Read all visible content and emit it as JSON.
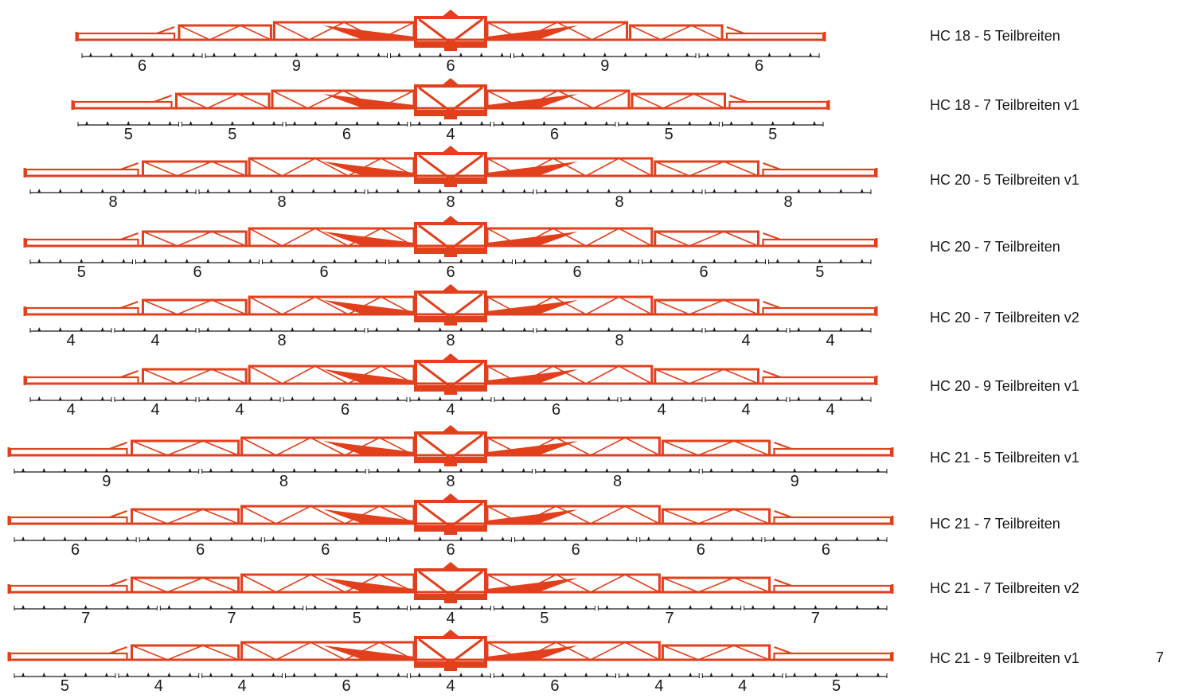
{
  "colors": {
    "boom": "#e2401c",
    "boom_dark": "#7a1d08",
    "line": "#1a1a1a"
  },
  "page_number": "7",
  "rows": [
    {
      "label": "HC 18 - 5 Teilbreiten",
      "sections": [
        6,
        9,
        6,
        9,
        6
      ]
    },
    {
      "label": "HC 18 - 7 Teilbreiten v1",
      "sections": [
        5,
        5,
        6,
        4,
        6,
        5,
        5
      ]
    },
    {
      "label": "HC 20 - 5 Teilbreiten v1",
      "sections": [
        8,
        8,
        8,
        8,
        8
      ]
    },
    {
      "label": "HC 20 - 7 Teilbreiten",
      "sections": [
        5,
        6,
        6,
        6,
        6,
        6,
        5
      ]
    },
    {
      "label": "HC 20 - 7 Teilbreiten v2",
      "sections": [
        4,
        4,
        8,
        8,
        8,
        4,
        4
      ]
    },
    {
      "label": "HC 20 - 9 Teilbreiten v1",
      "sections": [
        4,
        4,
        4,
        6,
        4,
        6,
        4,
        4,
        4
      ]
    },
    {
      "label": "HC 21 - 5 Teilbreiten v1",
      "sections": [
        9,
        8,
        8,
        8,
        9
      ]
    },
    {
      "label": "HC 21 - 7 Teilbreiten",
      "sections": [
        6,
        6,
        6,
        6,
        6,
        6,
        6
      ]
    },
    {
      "label": "HC 21 - 7 Teilbreiten v2",
      "sections": [
        7,
        7,
        5,
        4,
        5,
        7,
        7
      ]
    },
    {
      "label": "HC 21 - 9 Teilbreiten v1",
      "sections": [
        5,
        4,
        4,
        6,
        4,
        6,
        4,
        4,
        5
      ]
    }
  ]
}
